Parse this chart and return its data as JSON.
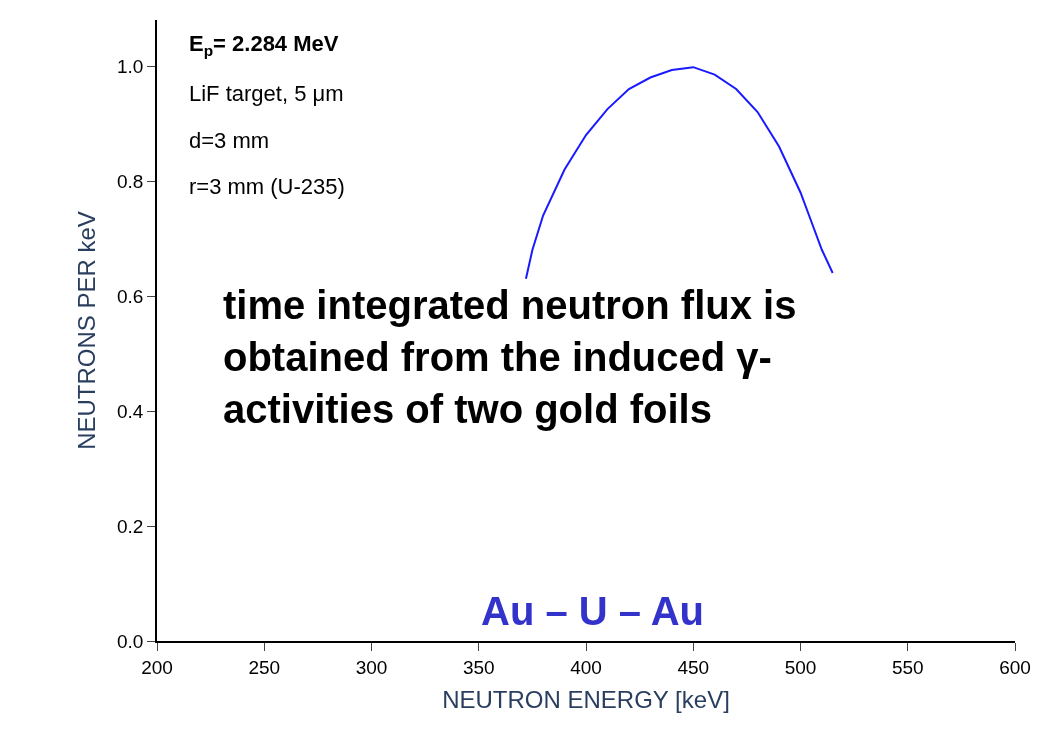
{
  "chart_data": {
    "type": "line",
    "xlabel": "NEUTRON ENERGY [keV]",
    "ylabel": "NEUTRONS PER keV",
    "x": [
      372,
      375,
      380,
      390,
      400,
      410,
      420,
      430,
      440,
      450,
      460,
      470,
      480,
      490,
      500,
      505,
      510,
      515
    ],
    "series": [
      {
        "color": "#1a1aff",
        "values": [
          0.63,
          0.68,
          0.74,
          0.82,
          0.88,
          0.925,
          0.96,
          0.98,
          0.993,
          0.998,
          0.985,
          0.96,
          0.92,
          0.86,
          0.78,
          0.73,
          0.68,
          0.64
        ]
      }
    ],
    "xlim": [
      200,
      600
    ],
    "xticks": [
      200,
      250,
      300,
      350,
      400,
      450,
      500,
      550,
      600
    ],
    "ylim": [
      0,
      1.08
    ],
    "yticks": [
      {
        "value": 0,
        "label": "0.0"
      },
      0.2,
      0.4,
      0.6,
      0.8,
      {
        "value": 1,
        "label": "1.0"
      }
    ],
    "legend": false,
    "marker": "none",
    "line_style": "solid",
    "annotations": [
      "E$_{p}$= 2.284 MeV",
      "LiF target, 5 μm",
      "d=3 mm",
      "r=3 mm (U-235)",
      "time integrated neutron flux is\nobtained from the induced γ-\nactivities of two gold foils",
      "Au – U – Au"
    ]
  }
}
